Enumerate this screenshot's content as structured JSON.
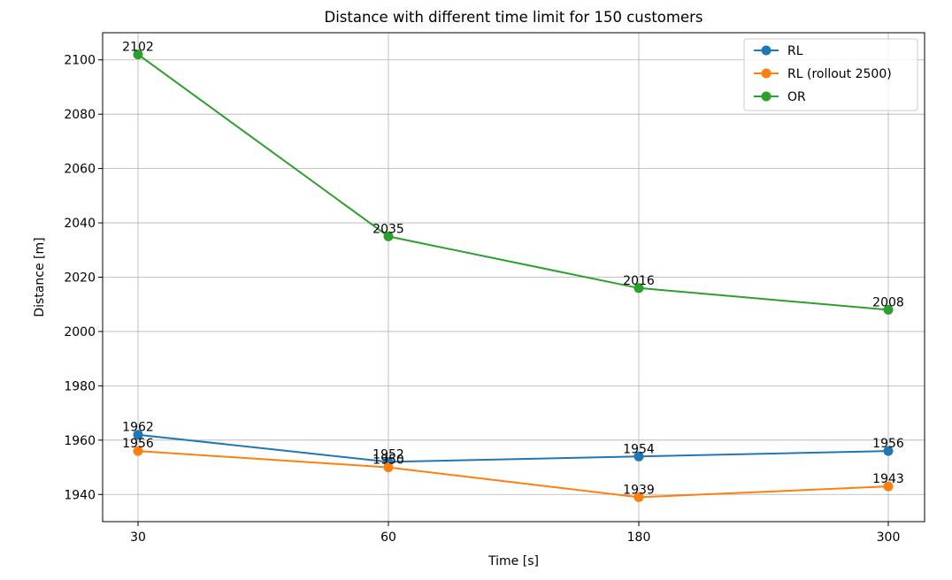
{
  "chart_data": {
    "type": "line",
    "title": "Distance with different time limit for 150 customers",
    "xlabel": "Time [s]",
    "ylabel": "Distance [m]",
    "categories": [
      "30",
      "60",
      "180",
      "300"
    ],
    "ylim": [
      1930,
      2110
    ],
    "yticks": [
      1940,
      1960,
      1980,
      2000,
      2020,
      2040,
      2060,
      2080,
      2100
    ],
    "grid": true,
    "legend_position": "top-right",
    "series": [
      {
        "name": "RL",
        "color": "#1f77b4",
        "values": [
          1962,
          1952,
          1954,
          1956
        ],
        "labels": [
          "1962",
          "1952",
          "1954",
          "1956"
        ]
      },
      {
        "name": "RL (rollout 2500)",
        "color": "#ff7f0e",
        "values": [
          1956,
          1950,
          1939,
          1943
        ],
        "labels": [
          "1956",
          "1950",
          "1939",
          "1943"
        ]
      },
      {
        "name": "OR",
        "color": "#2ca02c",
        "values": [
          2102,
          2035,
          2016,
          2008
        ],
        "labels": [
          "2102",
          "2035",
          "2016",
          "2008"
        ]
      }
    ]
  }
}
